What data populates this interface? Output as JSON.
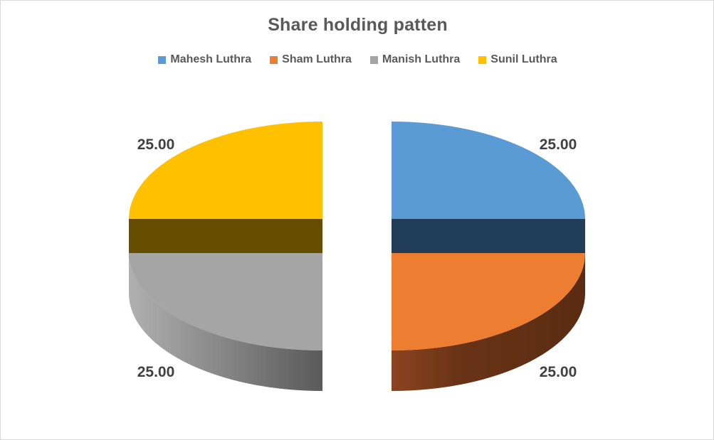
{
  "chart_data": {
    "type": "pie",
    "title": "Share holding patten",
    "legend_position": "top",
    "slices": [
      {
        "name": "Mahesh Luthra",
        "value": 25.0,
        "label": "25.00",
        "color": "#5B9BD5",
        "side_color": "#223D57"
      },
      {
        "name": "Sham Luthra",
        "value": 25.0,
        "label": "25.00",
        "color": "#ED7D31",
        "side_color": "#633316"
      },
      {
        "name": "Manish Luthra",
        "value": 25.0,
        "label": "25.00",
        "color": "#A5A5A5",
        "side_color": "#6E6E6E"
      },
      {
        "name": "Sunil Luthra",
        "value": 25.0,
        "label": "25.00",
        "color": "#FFC000",
        "side_color": "#664D00"
      }
    ]
  }
}
